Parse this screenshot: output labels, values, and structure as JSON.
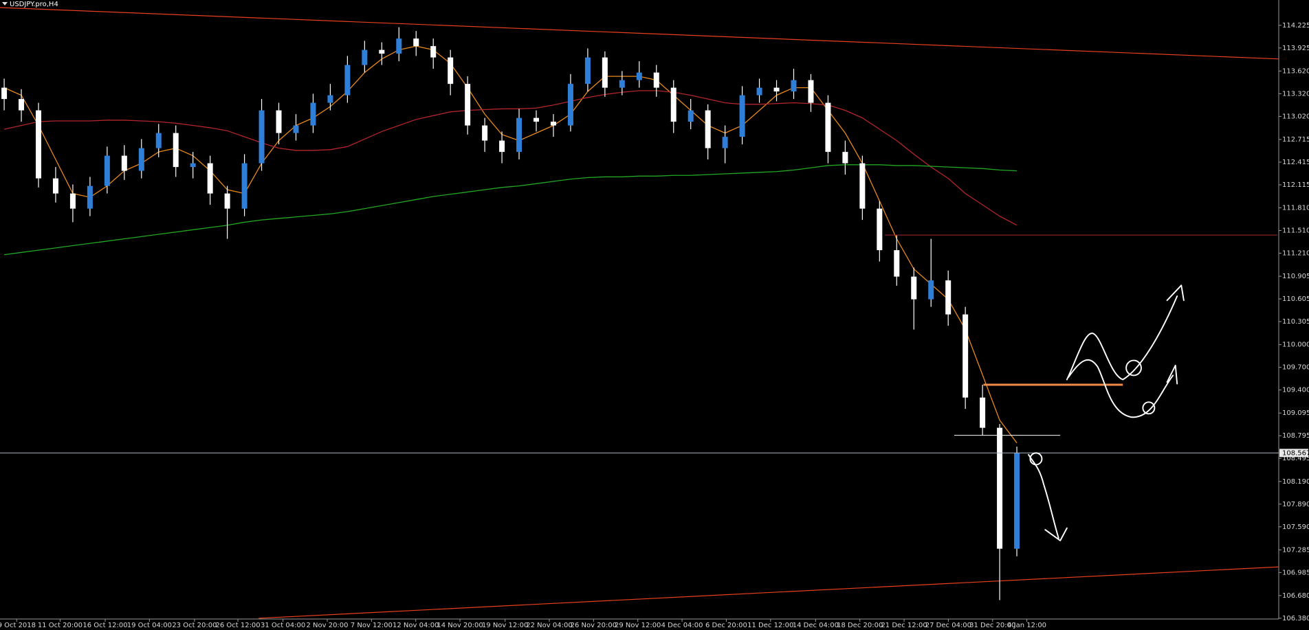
{
  "chart_data": {
    "type": "candlestick",
    "title": "USDJPY.pro,H4",
    "up_color": "#2f7ed8",
    "down_color": "#ffffff",
    "open": [
      113.4,
      113.25,
      113.1,
      112.2,
      112.0,
      111.8,
      112.1,
      112.5,
      112.3,
      112.6,
      112.8,
      112.35,
      112.4,
      112.0,
      111.8,
      112.4,
      113.1,
      112.8,
      112.9,
      113.2,
      113.3,
      113.7,
      113.9,
      113.85,
      114.05,
      113.95,
      113.8,
      113.45,
      112.9,
      112.7,
      112.55,
      113.0,
      112.95,
      112.9,
      113.45,
      113.8,
      113.4,
      113.5,
      113.6,
      113.4,
      112.95,
      113.1,
      112.6,
      112.75,
      113.3,
      113.4,
      113.35,
      113.5,
      113.2,
      112.55,
      112.4,
      111.8,
      111.25,
      110.9,
      110.6,
      110.85,
      110.4,
      109.3,
      108.9,
      107.3
    ],
    "high": [
      113.52,
      113.38,
      113.2,
      112.35,
      112.12,
      112.22,
      112.62,
      112.64,
      112.72,
      112.92,
      112.9,
      112.55,
      112.5,
      112.1,
      112.52,
      113.25,
      113.2,
      113.05,
      113.32,
      113.45,
      113.82,
      114.02,
      114.0,
      114.2,
      114.15,
      114.05,
      113.9,
      113.55,
      113.0,
      112.82,
      113.12,
      113.1,
      113.05,
      113.58,
      113.92,
      113.88,
      113.62,
      113.75,
      113.7,
      113.5,
      113.25,
      113.18,
      112.9,
      113.42,
      113.52,
      113.5,
      113.65,
      113.58,
      113.3,
      112.7,
      112.5,
      111.9,
      111.45,
      111.02,
      111.4,
      110.98,
      110.5,
      109.47,
      108.95,
      108.65
    ],
    "low": [
      113.1,
      112.95,
      112.08,
      111.88,
      111.62,
      111.7,
      112.0,
      112.18,
      112.2,
      112.48,
      112.22,
      112.2,
      111.85,
      111.4,
      111.7,
      112.3,
      112.65,
      112.7,
      112.8,
      113.1,
      113.2,
      113.6,
      113.7,
      113.75,
      113.82,
      113.65,
      113.3,
      112.78,
      112.55,
      112.4,
      112.45,
      112.82,
      112.75,
      112.82,
      113.35,
      113.28,
      113.3,
      113.4,
      113.28,
      112.8,
      112.85,
      112.45,
      112.4,
      112.65,
      113.2,
      113.22,
      113.25,
      113.08,
      112.4,
      112.25,
      111.65,
      111.1,
      110.78,
      110.2,
      110.5,
      110.25,
      109.15,
      108.8,
      106.62,
      107.2
    ],
    "close": [
      113.25,
      113.1,
      112.2,
      112.0,
      111.8,
      112.1,
      112.5,
      112.3,
      112.6,
      112.8,
      112.35,
      112.4,
      112.0,
      111.8,
      112.4,
      113.1,
      112.8,
      112.9,
      113.2,
      113.3,
      113.7,
      113.9,
      113.85,
      114.05,
      113.95,
      113.8,
      113.45,
      112.9,
      112.7,
      112.55,
      113.0,
      112.95,
      112.9,
      113.45,
      113.8,
      113.4,
      113.5,
      113.6,
      113.4,
      112.95,
      113.1,
      112.6,
      112.75,
      113.3,
      113.4,
      113.35,
      113.5,
      113.2,
      112.55,
      112.4,
      111.8,
      111.25,
      110.9,
      110.6,
      110.85,
      110.4,
      109.3,
      108.9,
      107.3,
      108.567
    ],
    "moving_averages": [
      {
        "color": "#e8891c",
        "values": [
          113.4,
          113.3,
          112.9,
          112.45,
          112.0,
          111.95,
          112.1,
          112.3,
          112.4,
          112.55,
          112.6,
          112.5,
          112.3,
          112.05,
          112.0,
          112.4,
          112.7,
          112.9,
          113.0,
          113.15,
          113.35,
          113.6,
          113.78,
          113.9,
          113.95,
          113.9,
          113.72,
          113.4,
          113.05,
          112.78,
          112.7,
          112.8,
          112.9,
          113.05,
          113.35,
          113.55,
          113.55,
          113.55,
          113.5,
          113.3,
          113.1,
          112.9,
          112.8,
          112.9,
          113.1,
          113.3,
          113.4,
          113.4,
          113.1,
          112.8,
          112.4,
          111.9,
          111.4,
          111.0,
          110.8,
          110.6,
          110.2,
          109.6,
          109.0,
          108.7
        ]
      },
      {
        "color": "#b3262b",
        "values": [
          112.85,
          112.9,
          112.95,
          112.96,
          112.96,
          112.96,
          112.97,
          112.97,
          112.96,
          112.95,
          112.93,
          112.9,
          112.87,
          112.83,
          112.75,
          112.67,
          112.6,
          112.57,
          112.57,
          112.58,
          112.62,
          112.72,
          112.82,
          112.9,
          112.98,
          113.03,
          113.08,
          113.1,
          113.11,
          113.12,
          113.12,
          113.13,
          113.17,
          113.22,
          113.27,
          113.31,
          113.34,
          113.36,
          113.36,
          113.34,
          113.3,
          113.25,
          113.2,
          113.18,
          113.18,
          113.19,
          113.2,
          113.19,
          113.17,
          113.1,
          113.0,
          112.85,
          112.7,
          112.52,
          112.35,
          112.2,
          112.0,
          111.85,
          111.7,
          111.58
        ]
      },
      {
        "color": "#22a822",
        "values": [
          111.19,
          111.22,
          111.25,
          111.28,
          111.31,
          111.34,
          111.37,
          111.4,
          111.43,
          111.46,
          111.49,
          111.52,
          111.55,
          111.58,
          111.62,
          111.65,
          111.67,
          111.69,
          111.71,
          111.73,
          111.76,
          111.8,
          111.84,
          111.88,
          111.92,
          111.96,
          111.99,
          112.02,
          112.05,
          112.08,
          112.1,
          112.13,
          112.16,
          112.19,
          112.21,
          112.22,
          112.22,
          112.23,
          112.23,
          112.24,
          112.24,
          112.25,
          112.26,
          112.27,
          112.28,
          112.29,
          112.31,
          112.34,
          112.37,
          112.38,
          112.38,
          112.38,
          112.37,
          112.37,
          112.36,
          112.35,
          112.34,
          112.33,
          112.31,
          112.3
        ]
      }
    ],
    "trendlines": [
      {
        "color": "#e8401c",
        "values": [
          114.46,
          113.78
        ]
      },
      {
        "color": "#e8401c",
        "values": [
          106.38,
          107.06
        ]
      }
    ],
    "levels": [
      {
        "color": "#a8282a",
        "value": 111.45
      },
      {
        "color": "#f08a4b",
        "value": 109.47
      },
      {
        "color": "#ffffff",
        "value": 108.8
      }
    ],
    "current_price": 108.567,
    "ylim": [
      106.37,
      114.56
    ],
    "yticks": [
      114.225,
      113.925,
      {
        "value": 113.62,
        "label": "113.620"
      },
      {
        "value": 113.32,
        "label": "113.320"
      },
      {
        "value": 113.02,
        "label": "113.020"
      },
      112.715,
      112.415,
      112.115,
      {
        "value": 111.81,
        "label": "111.810"
      },
      {
        "value": 111.51,
        "label": "111.510"
      },
      {
        "value": 111.21,
        "label": "111.210"
      },
      110.905,
      110.605,
      110.305,
      {
        "value": 110,
        "label": "110.000"
      },
      {
        "value": 109.7,
        "label": "109.700"
      },
      {
        "value": 109.4,
        "label": "109.400"
      },
      109.095,
      108.795,
      108.495,
      {
        "value": 108.19,
        "label": "108.190"
      },
      {
        "value": 107.89,
        "label": "107.890"
      },
      {
        "value": 107.59,
        "label": "107.590"
      },
      107.285,
      106.985,
      {
        "value": 106.68,
        "label": "106.680"
      },
      {
        "value": 106.38,
        "label": "106.380"
      }
    ],
    "x_labels": [
      "9 Oct 2018",
      "11 Oct 20:00",
      "16 Oct 12:00",
      "19 Oct 04:00",
      "23 Oct 20:00",
      "26 Oct 12:00",
      "31 Oct 04:00",
      "2 Nov 20:00",
      "7 Nov 12:00",
      "12 Nov 04:00",
      "14 Nov 20:00",
      "19 Nov 12:00",
      "22 Nov 04:00",
      "26 Nov 20:00",
      "29 Nov 12:00",
      "4 Dec 04:00",
      "6 Dec 20:00",
      "11 Dec 12:00",
      "14 Dec 04:00",
      "18 Dec 20:00",
      "21 Dec 12:00",
      "27 Dec 04:00",
      "31 Dec 20:00",
      "4 Jan 12:00"
    ]
  }
}
